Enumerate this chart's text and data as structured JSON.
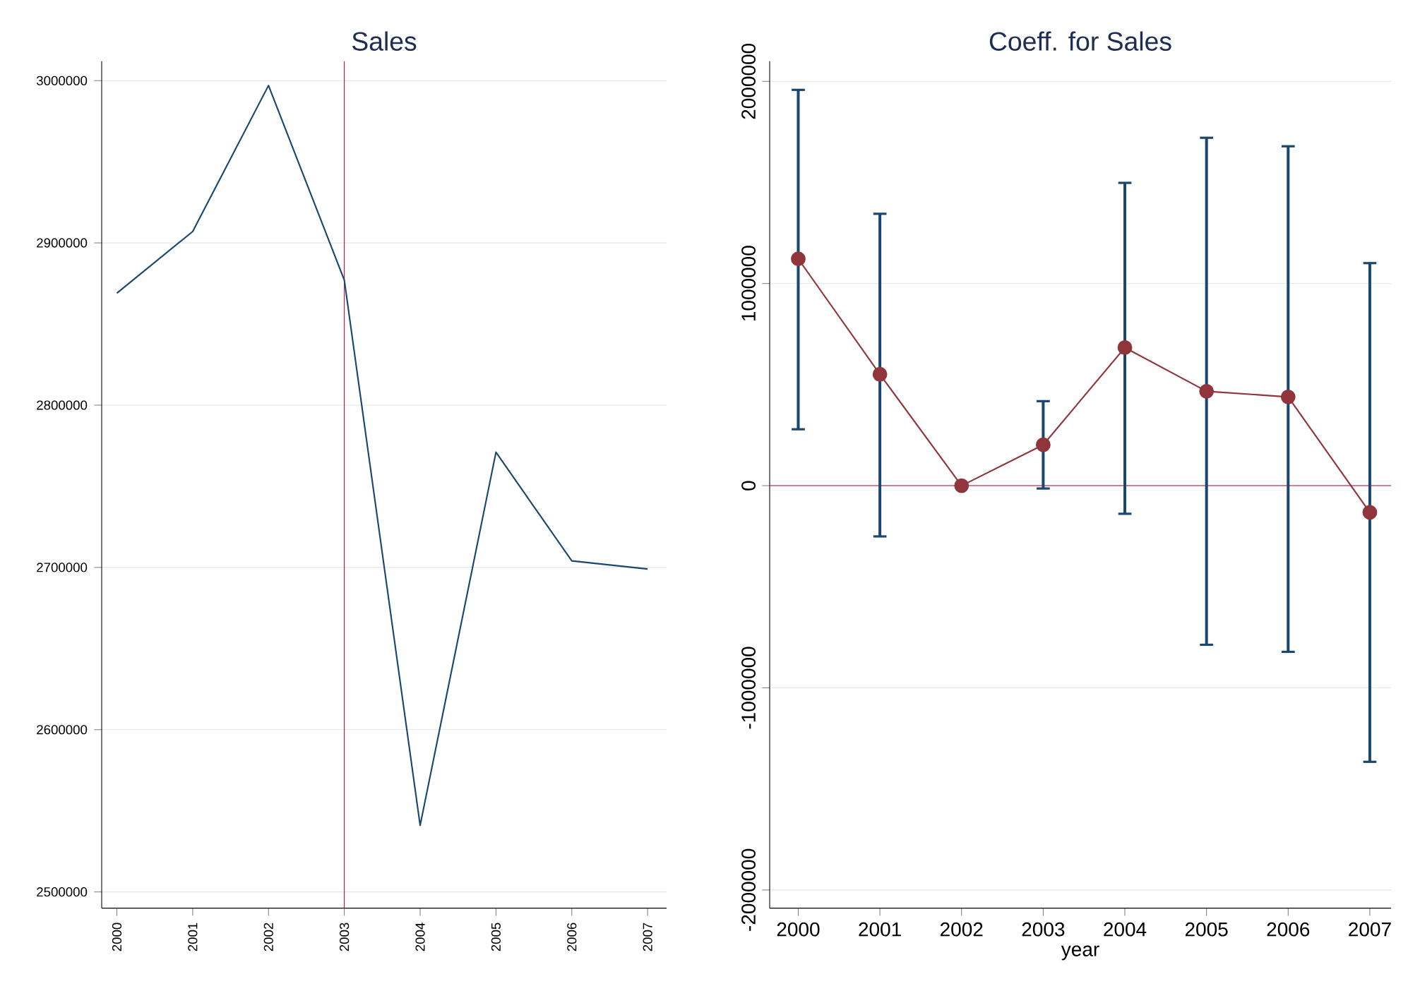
{
  "chart_data": [
    {
      "type": "line",
      "title": "Sales",
      "x": [
        2000,
        2001,
        2002,
        2003,
        2004,
        2005,
        2006,
        2007
      ],
      "values": [
        2869000,
        2907000,
        2997000,
        2877000,
        2541000,
        2771000,
        2704000,
        2699000
      ],
      "color": "#1a476f",
      "marker": "none",
      "line_style": "solid",
      "grid": "y",
      "xlim": [
        1999.8,
        2007.25
      ],
      "ylim": [
        2490000,
        3012000
      ],
      "xticks": [
        2000,
        2001,
        2002,
        2003,
        2004,
        2005,
        2006,
        2007
      ],
      "yticks": [
        2500000,
        2600000,
        2700000,
        2800000,
        2900000,
        3000000
      ],
      "ref_lines": [
        {
          "axis": "x",
          "value": 2003,
          "color": "#c10534"
        }
      ]
    },
    {
      "type": "line",
      "title": "Coeff. for Sales",
      "xlabel": "year",
      "x": [
        2000,
        2001,
        2002,
        2003,
        2004,
        2005,
        2006,
        2007
      ],
      "values": [
        1122000,
        551000,
        0,
        202000,
        683000,
        467000,
        439000,
        -132000
      ],
      "color": "#90353b",
      "marker": "circle",
      "line_style": "solid",
      "grid": "y",
      "errors": [
        [
          279000,
          1958000
        ],
        [
          -251000,
          1345000
        ],
        null,
        [
          -14000,
          418000
        ],
        [
          -139000,
          1498000
        ],
        [
          -787000,
          1721000
        ],
        [
          -822000,
          1679000
        ],
        [
          -1366000,
          1101000
        ]
      ],
      "xlim": [
        1999.65,
        2007.26
      ],
      "ylim": [
        -2090000,
        2100000
      ],
      "xticks": [
        2000,
        2001,
        2002,
        2003,
        2004,
        2005,
        2006,
        2007
      ],
      "yticks": [
        -2000000,
        -1000000,
        0,
        1000000,
        2000000
      ],
      "ref_lines": [
        {
          "axis": "y",
          "value": 0,
          "color": "#c10534"
        }
      ]
    }
  ]
}
